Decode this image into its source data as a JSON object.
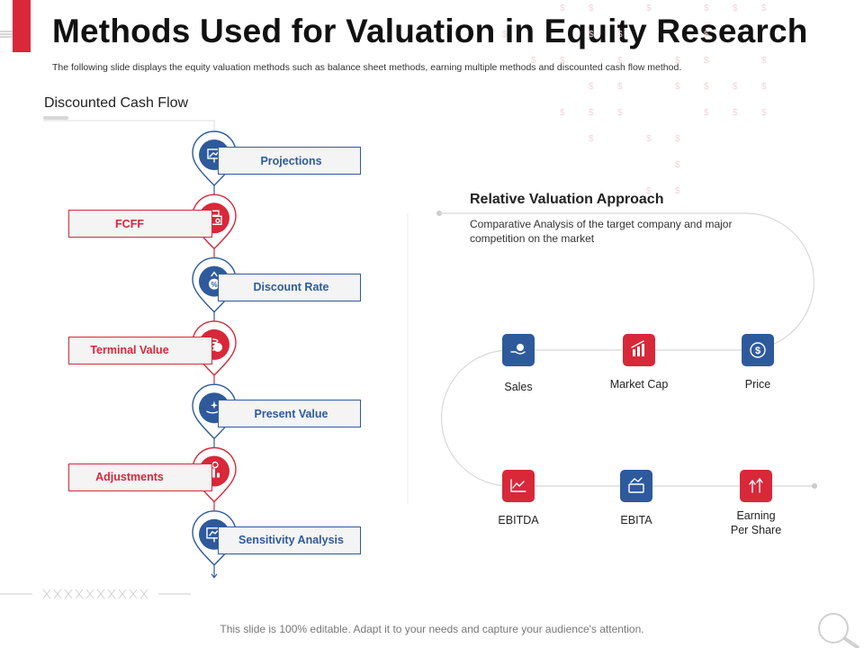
{
  "header": {
    "title": "Methods Used for Valuation in Equity Research",
    "subtitle": "The following slide displays the equity valuation methods such as balance sheet methods, earning multiple methods and discounted cash flow method."
  },
  "dcf": {
    "heading": "Discounted Cash Flow",
    "steps": [
      {
        "label": "Projections",
        "color": "blue",
        "icon": "projection-chart-icon"
      },
      {
        "label": "FCFF",
        "color": "red",
        "icon": "cash-register-icon"
      },
      {
        "label": "Discount  Rate",
        "color": "blue",
        "icon": "percent-arrow-icon"
      },
      {
        "label": "Terminal Value",
        "color": "red",
        "icon": "coin-stack-icon"
      },
      {
        "label": "Present Value",
        "color": "blue",
        "icon": "hand-sparkle-icon"
      },
      {
        "label": "Adjustments",
        "color": "red",
        "icon": "bar-chart-gear-icon"
      },
      {
        "label": "Sensitivity Analysis",
        "color": "blue",
        "icon": "presentation-board-icon"
      }
    ]
  },
  "relative": {
    "heading": "Relative Valuation Approach",
    "description": "Comparative  Analysis of the target company and major competition on the market",
    "metrics": [
      {
        "label": "Sales",
        "color": "blue",
        "icon": "hand-money-icon"
      },
      {
        "label": "Market Cap",
        "color": "red",
        "icon": "market-chart-icon"
      },
      {
        "label": "Price",
        "color": "blue",
        "icon": "dollar-badge-icon"
      },
      {
        "label": "EBITDA",
        "color": "red",
        "icon": "line-graph-icon"
      },
      {
        "label": "EBITA",
        "color": "blue",
        "icon": "cash-graph-icon"
      },
      {
        "label": "Earning\nPer Share",
        "color": "red",
        "icon": "growth-arrows-icon"
      }
    ]
  },
  "footer": {
    "text": "This slide is 100% editable. Adapt it to your needs and capture your audience's attention."
  },
  "colors": {
    "blue": "#2e5a9c",
    "red": "#d8283a"
  }
}
